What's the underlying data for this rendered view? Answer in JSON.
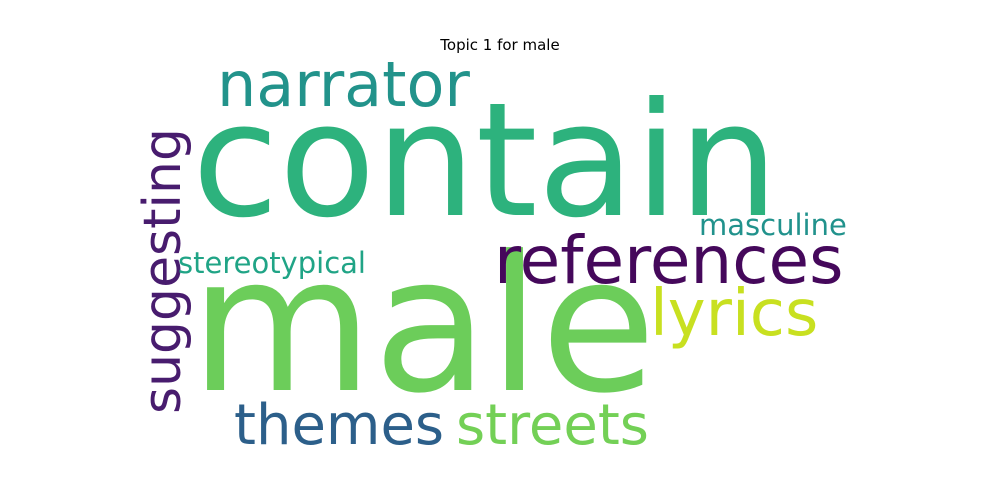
{
  "figure": {
    "title": "Topic 1 for male"
  },
  "words": [
    {
      "id": "word-contain",
      "text": "contain",
      "color": "#2db27d"
    },
    {
      "id": "word-male",
      "text": "male",
      "color": "#6ccd5a"
    },
    {
      "id": "word-narrator",
      "text": "narrator",
      "color": "#22938b"
    },
    {
      "id": "word-references",
      "text": "references",
      "color": "#45085b"
    },
    {
      "id": "word-lyrics",
      "text": "lyrics",
      "color": "#c8e020"
    },
    {
      "id": "word-suggesting",
      "text": "suggesting",
      "color": "#481c6e"
    },
    {
      "id": "word-themes",
      "text": "themes",
      "color": "#2c5f8a"
    },
    {
      "id": "word-streets",
      "text": "streets",
      "color": "#73d056"
    },
    {
      "id": "word-masculine",
      "text": "masculine",
      "color": "#21928c"
    },
    {
      "id": "word-stereotypical",
      "text": "stereotypical",
      "color": "#20a486"
    }
  ]
}
